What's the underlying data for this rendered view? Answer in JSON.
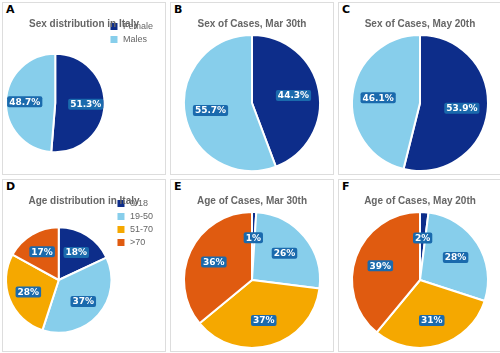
{
  "chart_data": [
    {
      "type": "pie",
      "title": "Sex distribution in Italy",
      "annotations": [
        "A"
      ],
      "categories": [
        "Female",
        "Males"
      ],
      "values": [
        51.3,
        48.7
      ],
      "value_labels": [
        "51.3%",
        "48.7%"
      ],
      "colors": [
        "#0d2d8a",
        "#87ceeb"
      ],
      "data_labels": true,
      "legend": "upper right"
    },
    {
      "type": "pie",
      "title": "Sex of Cases, Mar 30th",
      "annotations": [
        "B"
      ],
      "categories": [
        null,
        null
      ],
      "values": [
        44.3,
        55.7
      ],
      "value_labels": [
        "44.3%",
        "55.7%"
      ],
      "colors": [
        "#0d2d8a",
        "#87ceeb"
      ],
      "data_labels": true
    },
    {
      "type": "pie",
      "title": "Sex of Cases, May 20th",
      "annotations": [
        "C"
      ],
      "categories": [
        null,
        null
      ],
      "values": [
        53.9,
        46.1
      ],
      "value_labels": [
        "53.9%",
        "46.1%"
      ],
      "colors": [
        "#0d2d8a",
        "#87ceeb"
      ],
      "data_labels": true
    },
    {
      "type": "pie",
      "title": "Age distribution in Italy",
      "annotations": [
        "D"
      ],
      "categories": [
        "0-18",
        "19-50",
        "51-70",
        ">70"
      ],
      "values": [
        18,
        37,
        28,
        17
      ],
      "value_labels": [
        "18%",
        "37%",
        "28%",
        "17%"
      ],
      "colors": [
        "#0d2d8a",
        "#87ceeb",
        "#f5a800",
        "#e05b10"
      ],
      "data_labels": true,
      "legend": "upper right"
    },
    {
      "type": "pie",
      "title": "Age of Cases, Mar 30th",
      "annotations": [
        "E"
      ],
      "categories": [
        null,
        null,
        null,
        null
      ],
      "values": [
        1,
        26,
        37,
        36
      ],
      "value_labels": [
        "1%",
        "26%",
        "37%",
        "36%"
      ],
      "colors": [
        "#0d2d8a",
        "#87ceeb",
        "#f5a800",
        "#e05b10"
      ],
      "data_labels": true
    },
    {
      "type": "pie",
      "title": "Age of Cases, May 20th",
      "annotations": [
        "F"
      ],
      "categories": [
        null,
        null,
        null,
        null
      ],
      "values": [
        2,
        28,
        31,
        39
      ],
      "value_labels": [
        "2%",
        "28%",
        "31%",
        "39%"
      ],
      "colors": [
        "#0d2d8a",
        "#87ceeb",
        "#f5a800",
        "#e05b10"
      ],
      "data_labels": true
    }
  ]
}
